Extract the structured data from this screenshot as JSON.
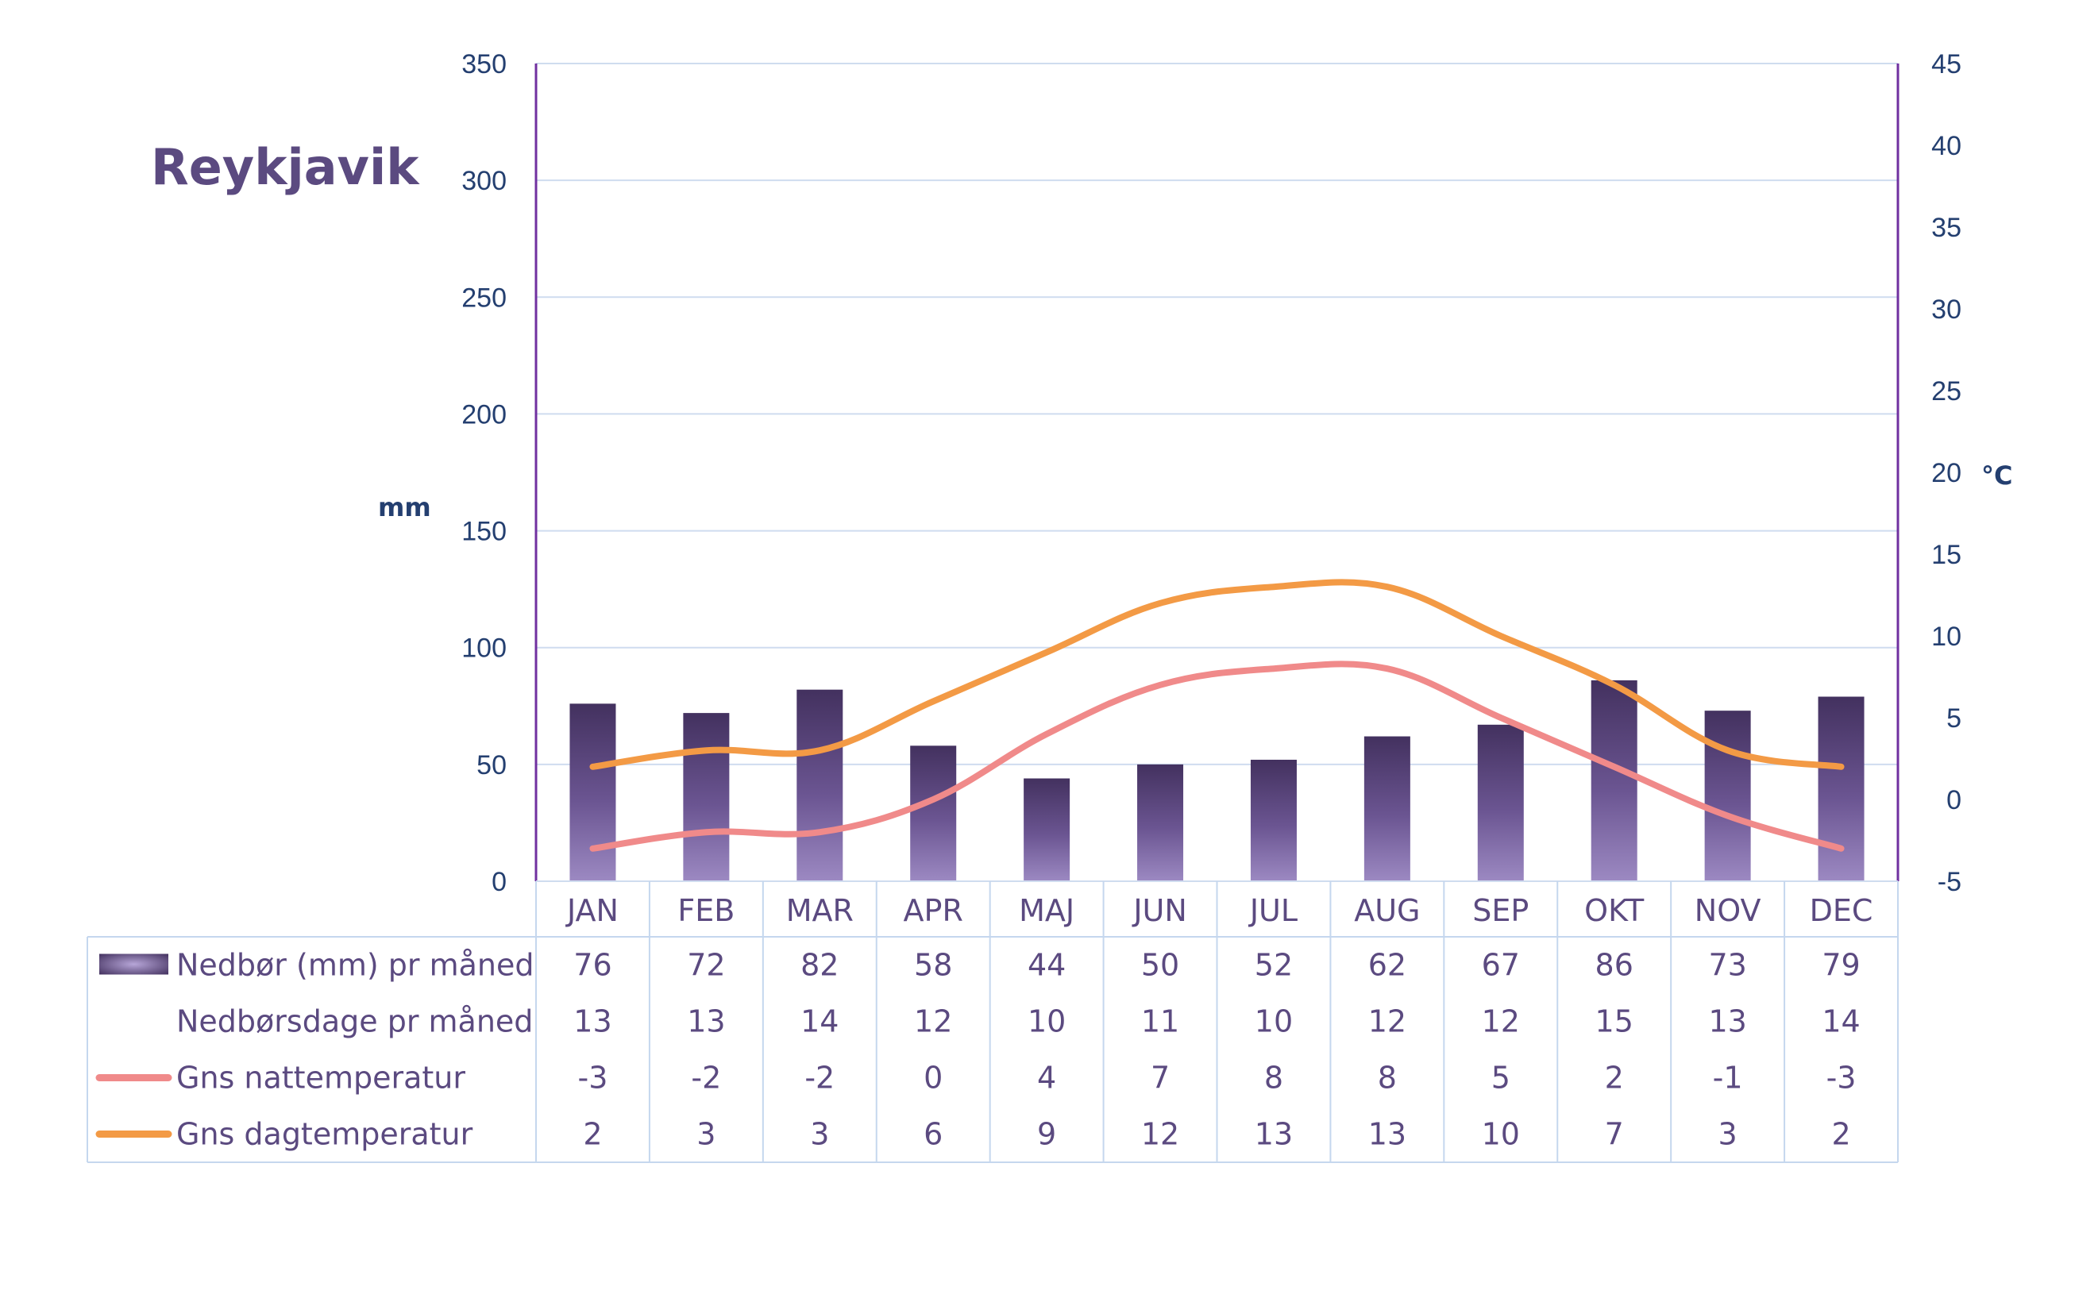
{
  "chart_data": {
    "type": "bar",
    "title": "Reykjavik",
    "categories": [
      "JAN",
      "FEB",
      "MAR",
      "APR",
      "MAJ",
      "JUN",
      "JUL",
      "AUG",
      "SEP",
      "OKT",
      "NOV",
      "DEC"
    ],
    "left_axis": {
      "label": "mm",
      "ylim": [
        0,
        350
      ],
      "ticks": [
        0,
        50,
        100,
        150,
        200,
        250,
        300,
        350
      ]
    },
    "right_axis": {
      "label": "°C",
      "ylim": [
        -5,
        45
      ],
      "ticks": [
        -5,
        0,
        5,
        10,
        15,
        20,
        25,
        30,
        35,
        40,
        45
      ]
    },
    "grid": true,
    "series": [
      {
        "name": "Nedbør (mm) pr måned",
        "kind": "bar",
        "axis": "left",
        "color": "#5a4880",
        "values": [
          76,
          72,
          82,
          58,
          44,
          50,
          52,
          62,
          67,
          86,
          73,
          79
        ]
      },
      {
        "name": "Nedbørsdage pr måned",
        "kind": "table",
        "values": [
          13,
          13,
          14,
          12,
          10,
          11,
          10,
          12,
          12,
          15,
          13,
          14
        ]
      },
      {
        "name": "Gns nattemperatur",
        "kind": "line",
        "axis": "right",
        "color": "#f08a8a",
        "values": [
          -3,
          -2,
          -2,
          0,
          4,
          7,
          8,
          8,
          5,
          2,
          -1,
          -3
        ]
      },
      {
        "name": "Gns dagtemperatur",
        "kind": "line",
        "axis": "right",
        "color": "#f39a45",
        "values": [
          2,
          3,
          3,
          6,
          9,
          12,
          13,
          13,
          10,
          7,
          3,
          2
        ]
      }
    ],
    "colors": {
      "axis": "#7030a0",
      "grid": "#cfdcef",
      "tick_text": "#243f70",
      "label_text": "#5b4a80",
      "table_border": "#c5d7ee"
    }
  }
}
